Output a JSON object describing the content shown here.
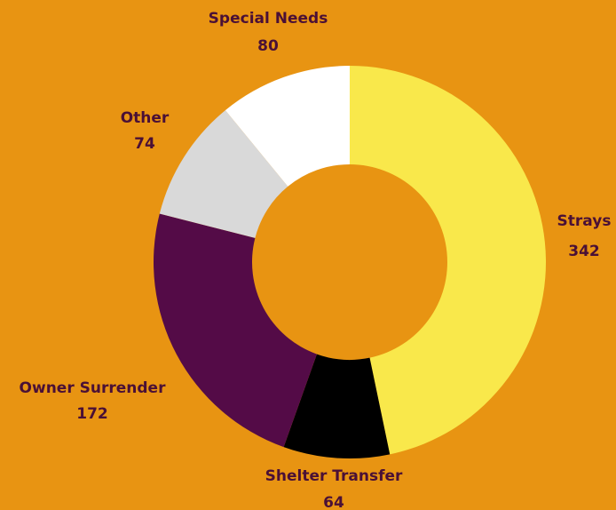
{
  "colors": {
    "background": "#E89412",
    "label_text": "#4A1036"
  },
  "chart_data": {
    "type": "pie",
    "style": "donut",
    "title": "",
    "categories": [
      "Strays",
      "Shelter Transfer",
      "Owner Surrender",
      "Other",
      "Special Needs"
    ],
    "values": [
      342,
      64,
      172,
      74,
      80
    ],
    "colors": [
      "#F9E84B",
      "#000000",
      "#540B47",
      "#D9D9D9",
      "#FFFFFF"
    ],
    "legend": "none",
    "labels": [
      {
        "name": "Strays",
        "value": "342"
      },
      {
        "name": "Shelter Transfer",
        "value": "64"
      },
      {
        "name": "Owner Surrender",
        "value": "172"
      },
      {
        "name": "Other",
        "value": "74"
      },
      {
        "name": "Special Needs",
        "value": "80"
      }
    ]
  }
}
